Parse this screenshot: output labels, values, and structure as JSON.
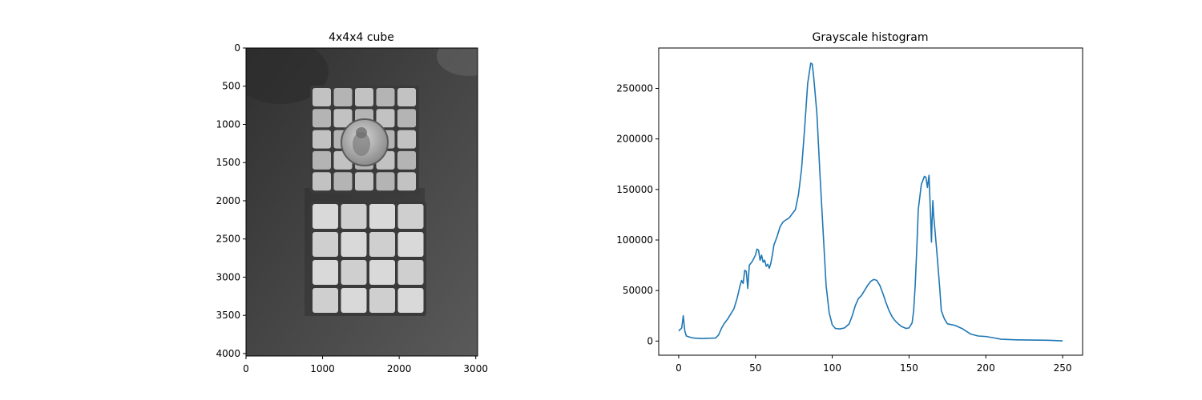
{
  "colors": {
    "line": "#1f77b4",
    "axis": "#000000"
  },
  "chart_data": [
    {
      "type": "image",
      "title": "4x4x4 cube",
      "xlim": [
        0,
        3024
      ],
      "ylim": [
        4032,
        0
      ],
      "xticks": [
        0,
        1000,
        2000,
        3000
      ],
      "yticks": [
        0,
        500,
        1000,
        1500,
        2000,
        2500,
        3000,
        3500,
        4000
      ],
      "image_description": "grayscale photo of two Rubik cubes and a coin"
    },
    {
      "type": "line",
      "title": "Grayscale histogram",
      "xlabel": "",
      "ylabel": "",
      "xlim": [
        -13,
        263
      ],
      "ylim": [
        -14000,
        290000
      ],
      "xticks": [
        0,
        50,
        100,
        150,
        200,
        250
      ],
      "yticks": [
        0,
        50000,
        100000,
        150000,
        200000,
        250000
      ],
      "series": [
        {
          "name": "histogram",
          "points": [
            [
              0,
              10000
            ],
            [
              2,
              13000
            ],
            [
              3,
              25000
            ],
            [
              4,
              10000
            ],
            [
              5,
              5000
            ],
            [
              8,
              3500
            ],
            [
              10,
              3000
            ],
            [
              15,
              2500
            ],
            [
              20,
              2800
            ],
            [
              24,
              3000
            ],
            [
              26,
              6000
            ],
            [
              28,
              13000
            ],
            [
              30,
              18000
            ],
            [
              32,
              22000
            ],
            [
              34,
              27000
            ],
            [
              36,
              32000
            ],
            [
              38,
              42000
            ],
            [
              40,
              55000
            ],
            [
              41,
              60000
            ],
            [
              42,
              57000
            ],
            [
              43,
              70000
            ],
            [
              44,
              69000
            ],
            [
              45,
              52000
            ],
            [
              46,
              75000
            ],
            [
              48,
              79000
            ],
            [
              50,
              85000
            ],
            [
              51,
              91000
            ],
            [
              52,
              90000
            ],
            [
              53,
              80000
            ],
            [
              54,
              85000
            ],
            [
              55,
              78000
            ],
            [
              56,
              80000
            ],
            [
              57,
              74000
            ],
            [
              58,
              76000
            ],
            [
              59,
              72000
            ],
            [
              60,
              77000
            ],
            [
              61,
              85000
            ],
            [
              62,
              95000
            ],
            [
              64,
              103000
            ],
            [
              65,
              108000
            ],
            [
              66,
              113000
            ],
            [
              68,
              118000
            ],
            [
              70,
              120000
            ],
            [
              72,
              122000
            ],
            [
              74,
              126000
            ],
            [
              76,
              130000
            ],
            [
              78,
              145000
            ],
            [
              80,
              170000
            ],
            [
              82,
              210000
            ],
            [
              84,
              255000
            ],
            [
              86,
              275000
            ],
            [
              87,
              274000
            ],
            [
              88,
              260000
            ],
            [
              90,
              225000
            ],
            [
              92,
              165000
            ],
            [
              94,
              110000
            ],
            [
              96,
              55000
            ],
            [
              98,
              28000
            ],
            [
              100,
              16000
            ],
            [
              102,
              12500
            ],
            [
              105,
              12000
            ],
            [
              108,
              13000
            ],
            [
              111,
              17000
            ],
            [
              113,
              25000
            ],
            [
              115,
              35000
            ],
            [
              117,
              42000
            ],
            [
              119,
              45000
            ],
            [
              121,
              50000
            ],
            [
              123,
              55000
            ],
            [
              125,
              59000
            ],
            [
              127,
              61000
            ],
            [
              129,
              60000
            ],
            [
              131,
              55000
            ],
            [
              133,
              47000
            ],
            [
              135,
              38000
            ],
            [
              137,
              30000
            ],
            [
              139,
              24000
            ],
            [
              141,
              20000
            ],
            [
              143,
              17000
            ],
            [
              145,
              14500
            ],
            [
              148,
              12500
            ],
            [
              150,
              13000
            ],
            [
              152,
              18000
            ],
            [
              153,
              30000
            ],
            [
              154,
              55000
            ],
            [
              155,
              90000
            ],
            [
              156,
              130000
            ],
            [
              158,
              155000
            ],
            [
              160,
              163000
            ],
            [
              161,
              162000
            ],
            [
              162,
              152000
            ],
            [
              163,
              164000
            ],
            [
              164,
              125000
            ],
            [
              164.6,
              98000
            ],
            [
              165,
              120000
            ],
            [
              165.5,
              139000
            ],
            [
              166,
              125000
            ],
            [
              168,
              90000
            ],
            [
              170,
              52000
            ],
            [
              171,
              30000
            ],
            [
              173,
              22000
            ],
            [
              175,
              17000
            ],
            [
              180,
              15500
            ],
            [
              185,
              12000
            ],
            [
              190,
              7000
            ],
            [
              195,
              5000
            ],
            [
              200,
              4500
            ],
            [
              205,
              3200
            ],
            [
              210,
              1800
            ],
            [
              220,
              1200
            ],
            [
              230,
              1000
            ],
            [
              240,
              800
            ],
            [
              250,
              200
            ]
          ]
        }
      ]
    }
  ]
}
